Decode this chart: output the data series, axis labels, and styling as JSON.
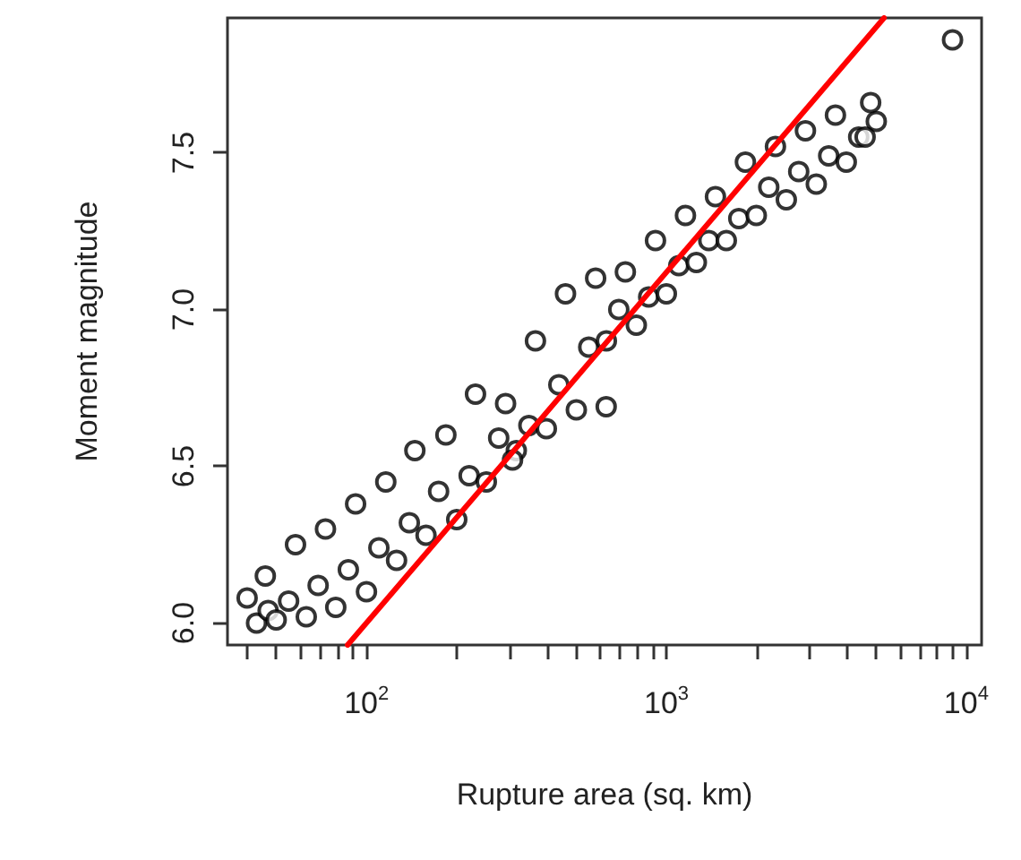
{
  "chart_data": {
    "type": "scatter",
    "xlabel": "Rupture area (sq. km)",
    "ylabel": "Moment magnitude",
    "log": "x",
    "grid": false,
    "xlim": [
      34.4,
      11250
    ],
    "ylim": [
      5.93,
      7.93
    ],
    "xticks": [
      {
        "value": 40,
        "label": null
      },
      {
        "value": 50,
        "label": null
      },
      {
        "value": 60,
        "label": null
      },
      {
        "value": 70,
        "label": null
      },
      {
        "value": 80,
        "label": null
      },
      {
        "value": 90,
        "label": null
      },
      {
        "value": 100,
        "label": "10$^{2}$"
      },
      {
        "value": 200,
        "label": null
      },
      {
        "value": 300,
        "label": null
      },
      {
        "value": 400,
        "label": null
      },
      {
        "value": 500,
        "label": null
      },
      {
        "value": 600,
        "label": null
      },
      {
        "value": 700,
        "label": null
      },
      {
        "value": 800,
        "label": null
      },
      {
        "value": 900,
        "label": null
      },
      {
        "value": 1000,
        "label": "10$^{3}$"
      },
      {
        "value": 2000,
        "label": null
      },
      {
        "value": 3000,
        "label": null
      },
      {
        "value": 4000,
        "label": null
      },
      {
        "value": 5000,
        "label": null
      },
      {
        "value": 6000,
        "label": null
      },
      {
        "value": 7000,
        "label": null
      },
      {
        "value": 8000,
        "label": null
      },
      {
        "value": 9000,
        "label": null
      },
      {
        "value": 10000,
        "label": "10$^{4}$"
      }
    ],
    "yticks": [
      {
        "value": 6,
        "label": "6.0"
      },
      {
        "value": 6.5,
        "label": "6.5"
      },
      {
        "value": 7,
        "label": "7.0"
      },
      {
        "value": 7.5,
        "label": "7.5"
      }
    ],
    "series": [
      {
        "color": "#000000",
        "marker": "circle",
        "x": [
          43,
          47,
          40,
          50,
          55,
          46,
          63,
          69,
          58,
          79,
          87,
          73,
          100,
          110,
          92,
          126,
          139,
          116,
          158,
          174,
          145,
          200,
          220,
          184,
          251,
          276,
          231,
          316,
          348,
          291,
          398,
          438,
          366,
          501,
          551,
          461,
          631,
          694,
          581,
          794,
          873,
          730,
          1000,
          1100,
          920,
          1259,
          1385,
          1158,
          1585,
          1744,
          1458,
          1995,
          2195,
          1835,
          2512,
          2763,
          2311,
          3162,
          3478,
          2909,
          3981,
          4379,
          3663,
          5012,
          4800,
          4600,
          9000,
          307,
          630
        ],
        "values": [
          6.0,
          6.04,
          6.08,
          6.01,
          6.07,
          6.15,
          6.02,
          6.12,
          6.25,
          6.05,
          6.17,
          6.3,
          6.1,
          6.24,
          6.38,
          6.2,
          6.32,
          6.45,
          6.28,
          6.42,
          6.55,
          6.33,
          6.47,
          6.6,
          6.45,
          6.59,
          6.73,
          6.55,
          6.63,
          6.7,
          6.62,
          6.76,
          6.9,
          6.68,
          6.88,
          7.05,
          6.9,
          7.0,
          7.1,
          6.95,
          7.04,
          7.12,
          7.05,
          7.14,
          7.22,
          7.15,
          7.22,
          7.3,
          7.22,
          7.29,
          7.36,
          7.3,
          7.39,
          7.47,
          7.35,
          7.44,
          7.52,
          7.4,
          7.49,
          7.57,
          7.47,
          7.55,
          7.62,
          7.6,
          7.66,
          7.55,
          7.86,
          6.52,
          6.69
        ]
      },
      {
        "type": "line",
        "color": "#ff0000",
        "marker": "none",
        "line_style": "solid",
        "x": [
          86.5,
          5320
        ],
        "values": [
          5.93,
          7.93
        ]
      }
    ]
  }
}
